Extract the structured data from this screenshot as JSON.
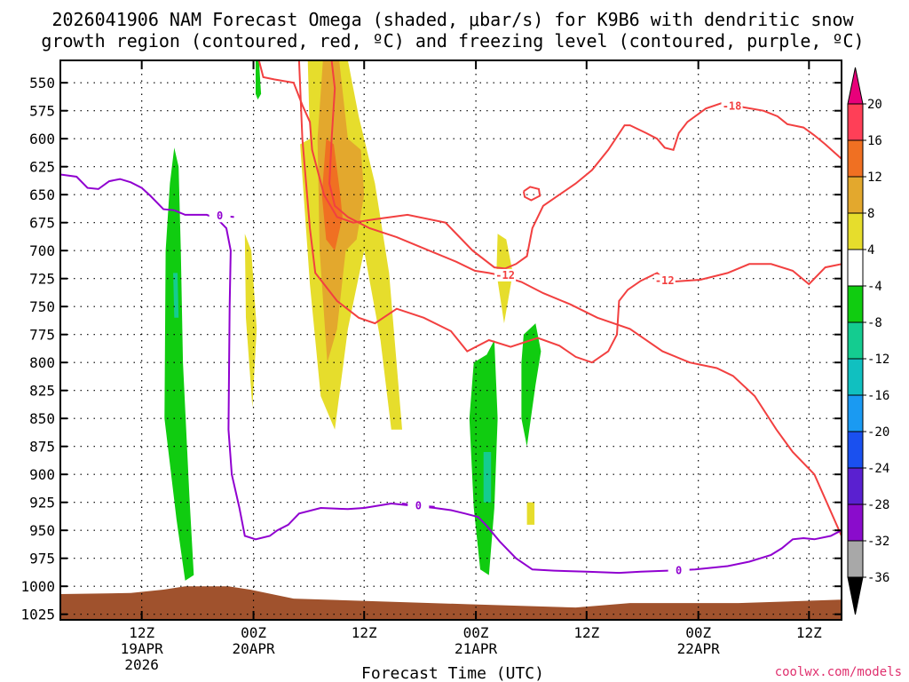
{
  "chart_data": {
    "type": "heatmap",
    "title_lines": [
      "2026041906 NAM Forecast Omega (shaded, μbar/s) for K9B6 with dendritic snow",
      "growth region (contoured, red, ºC) and freezing level (contoured, purple, ºC)"
    ],
    "xlabel": "Forecast Time (UTC)",
    "credit": "coolwx.com/models",
    "x_range_hours": [
      -7.5,
      64.5
    ],
    "y_range_hPa": [
      530,
      1030
    ],
    "y_ticks": [
      550,
      575,
      600,
      625,
      650,
      675,
      700,
      725,
      750,
      775,
      800,
      825,
      850,
      875,
      900,
      925,
      950,
      975,
      1000,
      1025
    ],
    "x_ticks": [
      {
        "hour": 0,
        "lines": [
          "12Z",
          "19APR",
          "2026"
        ]
      },
      {
        "hour": 10.3,
        "lines": [
          "00Z",
          "20APR"
        ]
      },
      {
        "hour": 20.5,
        "lines": [
          "12Z"
        ]
      },
      {
        "hour": 30.8,
        "lines": [
          "00Z",
          "21APR"
        ]
      },
      {
        "hour": 41,
        "lines": [
          "12Z"
        ]
      },
      {
        "hour": 51.3,
        "lines": [
          "00Z",
          "22APR"
        ]
      },
      {
        "hour": 61.5,
        "lines": [
          "12Z"
        ]
      }
    ],
    "colorbar": {
      "labels": [
        "20",
        "16",
        "12",
        "8",
        "4",
        "-4",
        "-8",
        "-12",
        "-16",
        "-20",
        "-24",
        "-28",
        "-32",
        "-36"
      ],
      "colors": [
        "#ff3f57",
        "#f07022",
        "#e3a82d",
        "#e6dd2c",
        "#ffffff",
        "#10cc10",
        "#14cc90",
        "#10c0c0",
        "#1a9af2",
        "#1a50ef",
        "#5a20d0",
        "#8a0ccc",
        "#a8a8a8"
      ],
      "top_arrow": "#e8007a",
      "bottom_arrow": "#000000"
    },
    "omega_regions": [
      {
        "color": "#e6dd2c",
        "pts": [
          [
            15.3,
            530
          ],
          [
            19,
            530
          ],
          [
            20,
            580
          ],
          [
            21.5,
            640
          ],
          [
            22.8,
            720
          ],
          [
            24,
            860
          ],
          [
            23,
            860
          ],
          [
            22,
            780
          ],
          [
            20.5,
            700
          ],
          [
            19,
            770
          ],
          [
            17.8,
            860
          ],
          [
            16.5,
            830
          ],
          [
            15.5,
            730
          ],
          [
            14.6,
            605
          ],
          [
            15.5,
            600
          ]
        ]
      },
      {
        "color": "#e3a82d",
        "pts": [
          [
            16.7,
            530
          ],
          [
            18.2,
            530
          ],
          [
            19,
            600
          ],
          [
            20.2,
            610
          ],
          [
            20.5,
            650
          ],
          [
            19.8,
            690
          ],
          [
            18.8,
            700
          ],
          [
            18,
            770
          ],
          [
            17.1,
            800
          ],
          [
            16.4,
            700
          ],
          [
            16.2,
            600
          ]
        ]
      },
      {
        "color": "#f07022",
        "pts": [
          [
            17,
            600
          ],
          [
            17.7,
            605
          ],
          [
            18.3,
            650
          ],
          [
            18.5,
            670
          ],
          [
            17.8,
            700
          ],
          [
            17,
            690
          ],
          [
            16.6,
            650
          ]
        ]
      },
      {
        "color": "#e6dd2c",
        "pts": [
          [
            9.5,
            685
          ],
          [
            10.1,
            700
          ],
          [
            10.6,
            770
          ],
          [
            10.2,
            840
          ],
          [
            9.6,
            760
          ]
        ]
      },
      {
        "color": "#e6dd2c",
        "pts": [
          [
            32.8,
            685
          ],
          [
            33.6,
            690
          ],
          [
            34.2,
            720
          ],
          [
            33.4,
            765
          ],
          [
            32.7,
            720
          ]
        ]
      },
      {
        "color": "#e6dd2c",
        "pts": [
          [
            35.5,
            925
          ],
          [
            36.2,
            925
          ],
          [
            36.2,
            945
          ],
          [
            35.5,
            945
          ]
        ]
      },
      {
        "color": "#10cc10",
        "pts": [
          [
            10.5,
            530
          ],
          [
            10.8,
            530
          ],
          [
            11,
            560
          ],
          [
            10.7,
            565
          ],
          [
            10.5,
            560
          ]
        ]
      },
      {
        "color": "#10cc10",
        "pts": [
          [
            3,
            608
          ],
          [
            3.4,
            625
          ],
          [
            3.6,
            700
          ],
          [
            3.8,
            800
          ],
          [
            4.4,
            920
          ],
          [
            4.8,
            990
          ],
          [
            4,
            995
          ],
          [
            3.2,
            940
          ],
          [
            2.1,
            850
          ],
          [
            2.2,
            700
          ],
          [
            2.6,
            640
          ]
        ]
      },
      {
        "color": "#14cc90",
        "pts": [
          [
            2.9,
            720
          ],
          [
            3.3,
            720
          ],
          [
            3.4,
            760
          ],
          [
            3,
            760
          ]
        ]
      },
      {
        "color": "#10cc10",
        "pts": [
          [
            30.6,
            800
          ],
          [
            31.8,
            793
          ],
          [
            32.5,
            780
          ],
          [
            32.8,
            850
          ],
          [
            32.5,
            930
          ],
          [
            32,
            990
          ],
          [
            31.2,
            985
          ],
          [
            30.6,
            930
          ],
          [
            30.2,
            850
          ]
        ]
      },
      {
        "color": "#14cc90",
        "pts": [
          [
            31.5,
            880
          ],
          [
            32.2,
            880
          ],
          [
            32.2,
            925
          ],
          [
            31.5,
            925
          ]
        ]
      },
      {
        "color": "#10cc10",
        "pts": [
          [
            35.2,
            775
          ],
          [
            36.3,
            765
          ],
          [
            36.8,
            790
          ],
          [
            36.3,
            820
          ],
          [
            35.5,
            875
          ],
          [
            35,
            850
          ],
          [
            35,
            800
          ]
        ]
      }
    ],
    "terrain": {
      "color": "#a0522d",
      "x_hours": [
        -7.5,
        -1,
        2,
        4,
        8,
        10,
        14,
        30,
        40,
        45,
        55,
        64.5
      ],
      "p_hPa": [
        1007,
        1006,
        1003,
        1000,
        1000,
        1003,
        1011,
        1016,
        1019,
        1015,
        1015,
        1012
      ]
    },
    "contours": [
      {
        "name": "snow-growth-minus18",
        "color": "#f24040",
        "level": "-18",
        "pts": [
          [
            10.8,
            530
          ],
          [
            11.2,
            545
          ],
          [
            12.2,
            547
          ],
          [
            14,
            550
          ],
          [
            14.8,
            570
          ],
          [
            15.5,
            585
          ],
          [
            15.7,
            610
          ],
          [
            16.8,
            650
          ],
          [
            18,
            670
          ],
          [
            19.5,
            675
          ],
          [
            21.5,
            672
          ],
          [
            24.5,
            668
          ],
          [
            28,
            675
          ],
          [
            30.5,
            700
          ],
          [
            32.5,
            715
          ],
          [
            33.5,
            716
          ],
          [
            34.5,
            712
          ],
          [
            35.5,
            705
          ],
          [
            36,
            680
          ],
          [
            37,
            660
          ],
          [
            38.5,
            650
          ],
          [
            40,
            640
          ],
          [
            41.5,
            628
          ],
          [
            43,
            610
          ],
          [
            44.5,
            588
          ],
          [
            45,
            588
          ],
          [
            46.5,
            595
          ],
          [
            47.5,
            600
          ],
          [
            48.2,
            608
          ],
          [
            49,
            610
          ],
          [
            49.5,
            595
          ],
          [
            50.3,
            585
          ],
          [
            52,
            573
          ],
          [
            53.5,
            568
          ],
          [
            55.5,
            572
          ],
          [
            57.3,
            575
          ],
          [
            58.6,
            580
          ],
          [
            59.5,
            587
          ],
          [
            61,
            590
          ],
          [
            62,
            597
          ],
          [
            63,
            605
          ],
          [
            64.5,
            618
          ]
        ],
        "label_at": [
          54.4,
          571
        ]
      },
      {
        "name": "snow-growth-minus12",
        "color": "#f24040",
        "level": "-12",
        "pts": [
          [
            17.5,
            530
          ],
          [
            17.8,
            555
          ],
          [
            17.5,
            600
          ],
          [
            17.3,
            640
          ],
          [
            17.8,
            660
          ],
          [
            19,
            670
          ],
          [
            21,
            680
          ],
          [
            23.5,
            688
          ],
          [
            26,
            698
          ],
          [
            29,
            710
          ],
          [
            30.7,
            718
          ],
          [
            32,
            720
          ],
          [
            33,
            722
          ],
          [
            35,
            728
          ],
          [
            37,
            738
          ],
          [
            39.5,
            748
          ],
          [
            42,
            760
          ],
          [
            45,
            770
          ],
          [
            48,
            790
          ],
          [
            50.5,
            800
          ],
          [
            53,
            805
          ],
          [
            54.5,
            812
          ],
          [
            56.5,
            830
          ],
          [
            58.5,
            860
          ],
          [
            60,
            880
          ],
          [
            62,
            900
          ],
          [
            64.5,
            955
          ]
        ],
        "label_at": [
          33.5,
          722
        ]
      },
      {
        "name": "snow-growth-minus12-lower",
        "color": "#f24040",
        "level": "-12",
        "pts": [
          [
            14.5,
            530
          ],
          [
            14.8,
            600
          ],
          [
            15.5,
            680
          ],
          [
            16,
            720
          ],
          [
            18,
            745
          ],
          [
            20,
            760
          ],
          [
            21.5,
            765
          ],
          [
            23.5,
            752
          ],
          [
            26,
            760
          ],
          [
            28.5,
            772
          ],
          [
            30,
            790
          ],
          [
            32,
            780
          ],
          [
            34,
            786
          ],
          [
            36.5,
            778
          ],
          [
            38.5,
            785
          ],
          [
            40,
            795
          ],
          [
            41.5,
            800
          ],
          [
            43,
            790
          ],
          [
            43.8,
            775
          ],
          [
            44,
            745
          ],
          [
            44.8,
            735
          ],
          [
            46,
            727
          ],
          [
            47.5,
            720
          ],
          [
            48.5,
            728
          ],
          [
            51.5,
            726
          ],
          [
            54,
            720
          ],
          [
            56,
            712
          ],
          [
            58,
            712
          ],
          [
            60,
            718
          ],
          [
            61.5,
            730
          ],
          [
            63,
            715
          ],
          [
            64.5,
            712
          ]
        ],
        "label_at": [
          48.2,
          727
        ]
      },
      {
        "name": "snow-growth-minus18-ring",
        "color": "#f24040",
        "level": "",
        "pts": [
          [
            35.2,
            647
          ],
          [
            35.8,
            643
          ],
          [
            36.6,
            645
          ],
          [
            36.7,
            651
          ],
          [
            35.9,
            655
          ],
          [
            35.3,
            652
          ],
          [
            35.2,
            647
          ]
        ],
        "label_at": null
      },
      {
        "name": "freezing-level-0",
        "color": "#9000d0",
        "level": "0",
        "pts": [
          [
            -7.5,
            632
          ],
          [
            -6,
            634
          ],
          [
            -5,
            644
          ],
          [
            -4,
            645
          ],
          [
            -3,
            638
          ],
          [
            -2,
            636
          ],
          [
            -1,
            639
          ],
          [
            0,
            644
          ],
          [
            0.8,
            651
          ],
          [
            2,
            663
          ],
          [
            3,
            664
          ],
          [
            4,
            668
          ],
          [
            6,
            668
          ],
          [
            7,
            672
          ],
          [
            7.8,
            680
          ],
          [
            8.2,
            700
          ],
          [
            8.1,
            750
          ],
          [
            8,
            860
          ],
          [
            8.3,
            900
          ],
          [
            9,
            930
          ],
          [
            9.5,
            955
          ],
          [
            10.5,
            958
          ],
          [
            11.8,
            955
          ],
          [
            12.5,
            950
          ],
          [
            13.5,
            945
          ],
          [
            14.5,
            935
          ],
          [
            16.5,
            930
          ],
          [
            19,
            931
          ],
          [
            20.5,
            930
          ],
          [
            23,
            926
          ],
          [
            25,
            928
          ],
          [
            27,
            930
          ],
          [
            28.5,
            932
          ],
          [
            29.8,
            935
          ],
          [
            31,
            938
          ],
          [
            31.8,
            946
          ],
          [
            33,
            960
          ],
          [
            34.5,
            975
          ],
          [
            36,
            985
          ],
          [
            38,
            986
          ],
          [
            41,
            987
          ],
          [
            44,
            988
          ],
          [
            46,
            987
          ],
          [
            48.5,
            986
          ],
          [
            51,
            985
          ],
          [
            54,
            982
          ],
          [
            56,
            978
          ],
          [
            58,
            972
          ],
          [
            59,
            966
          ],
          [
            60,
            958
          ],
          [
            61,
            957
          ],
          [
            62,
            958
          ],
          [
            63.5,
            955
          ],
          [
            64.5,
            950
          ]
        ],
        "label_at": [
          49.5,
          986
        ]
      },
      {
        "name": "freezing-level-0-upper",
        "color": "#9000d0",
        "level": "0",
        "pts": [
          [
            6.5,
            668
          ],
          [
            7.5,
            669
          ],
          [
            8.5,
            670
          ]
        ],
        "label_at": [
          7.2,
          669
        ]
      },
      {
        "name": "freezing-level-0-mid",
        "color": "#9000d0",
        "level": "0",
        "pts": [
          [
            24,
            926
          ],
          [
            25.5,
            928
          ],
          [
            27,
            929
          ]
        ],
        "label_at": [
          25.5,
          928
        ]
      }
    ]
  }
}
